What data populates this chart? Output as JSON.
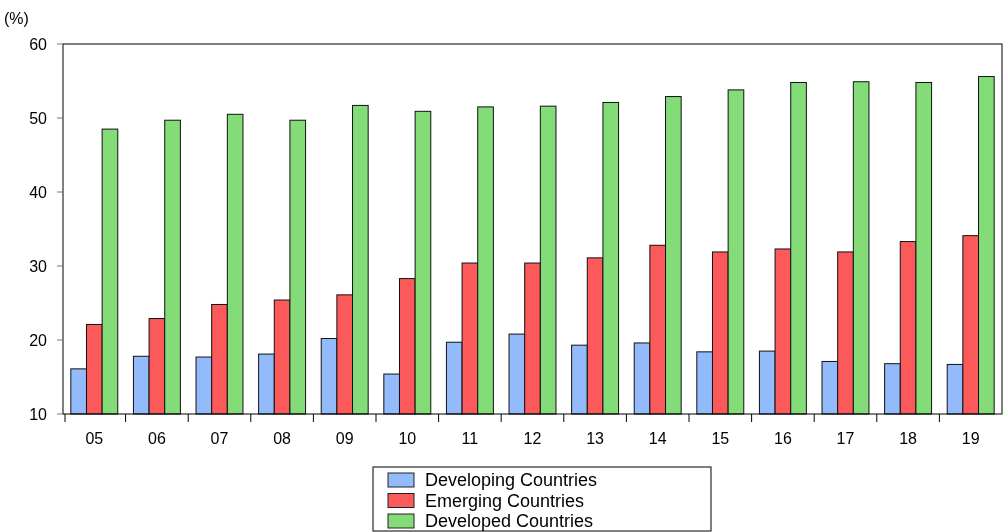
{
  "chart_data": {
    "type": "bar",
    "ylabel": "(%)",
    "categories": [
      "05",
      "06",
      "07",
      "08",
      "09",
      "10",
      "11",
      "12",
      "13",
      "14",
      "15",
      "16",
      "17",
      "18",
      "19"
    ],
    "series": [
      {
        "name": "Developing Countries",
        "color": "#93bbfc",
        "values": [
          16.1,
          17.8,
          17.7,
          18.1,
          20.2,
          15.4,
          19.7,
          20.8,
          19.3,
          19.6,
          18.4,
          18.5,
          17.1,
          16.8,
          16.7
        ]
      },
      {
        "name": "Emerging Countries",
        "color": "#fc5a5a",
        "values": [
          22.1,
          22.9,
          24.8,
          25.4,
          26.1,
          28.3,
          30.4,
          30.4,
          31.1,
          32.8,
          31.9,
          32.3,
          31.9,
          33.3,
          34.1
        ]
      },
      {
        "name": "Developed Countries",
        "color": "#83dc78",
        "values": [
          48.5,
          49.7,
          50.5,
          49.7,
          51.7,
          50.9,
          51.5,
          51.6,
          52.1,
          52.9,
          53.8,
          54.8,
          54.9,
          54.8,
          55.6
        ]
      }
    ],
    "ylim": [
      10,
      60
    ],
    "yticks": [
      10,
      20,
      30,
      40,
      50,
      60
    ],
    "grid": false,
    "legend": "bottom"
  }
}
